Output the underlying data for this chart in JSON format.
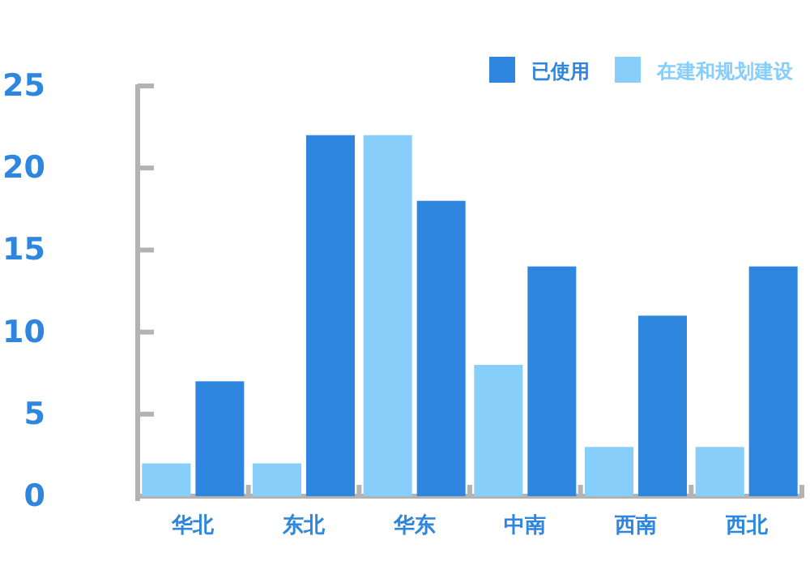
{
  "chart_data": {
    "type": "bar",
    "categories": [
      "华北",
      "东北",
      "华东",
      "中南",
      "西南",
      "西北"
    ],
    "series": [
      {
        "name": "在建和规划建设",
        "color": "#87cefa",
        "values": [
          2,
          2,
          22,
          8,
          3,
          3
        ]
      },
      {
        "name": "已使用",
        "color": "#2e86de",
        "values": [
          7,
          22,
          18,
          14,
          11,
          14
        ]
      }
    ],
    "ylim": [
      0,
      25
    ],
    "yticks": [
      0,
      5,
      10,
      15,
      20,
      25
    ],
    "grid": false,
    "legend": "top right"
  }
}
